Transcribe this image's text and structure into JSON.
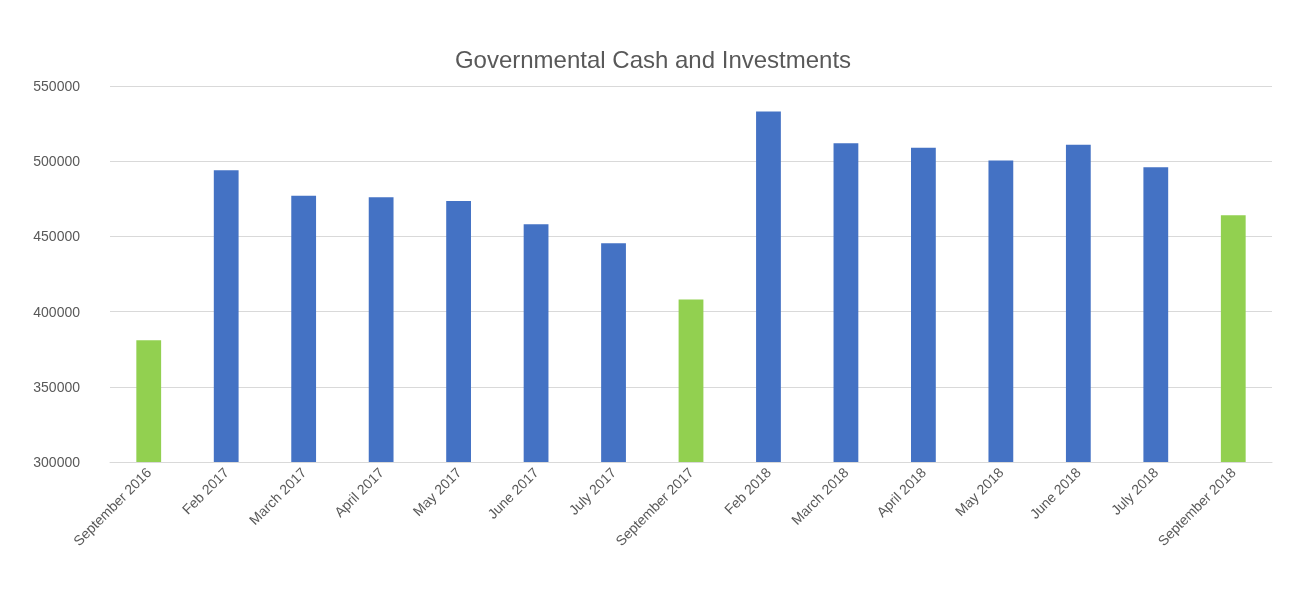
{
  "chart_data": {
    "type": "bar",
    "title": "Governmental Cash and Investments",
    "categories": [
      "September 2016",
      "Feb 2017",
      "March 2017",
      "April 2017",
      "May 2017",
      "June 2017",
      "July 2017",
      "September 2017",
      "Feb 2018",
      "March 2018",
      "April 2018",
      "May 2018",
      "June 2018",
      "July 2018",
      "September 2018"
    ],
    "values": [
      381000,
      494000,
      477000,
      476000,
      473500,
      458000,
      445500,
      408000,
      533000,
      512000,
      509000,
      500500,
      511000,
      496000,
      464000
    ],
    "colors": [
      "#92d050",
      "#4472c4",
      "#4472c4",
      "#4472c4",
      "#4472c4",
      "#4472c4",
      "#4472c4",
      "#92d050",
      "#4472c4",
      "#4472c4",
      "#4472c4",
      "#4472c4",
      "#4472c4",
      "#4472c4",
      "#92d050"
    ],
    "ylim": [
      300000,
      550000
    ],
    "yticks": [
      300000,
      350000,
      400000,
      450000,
      500000,
      550000
    ],
    "grid": "y"
  }
}
